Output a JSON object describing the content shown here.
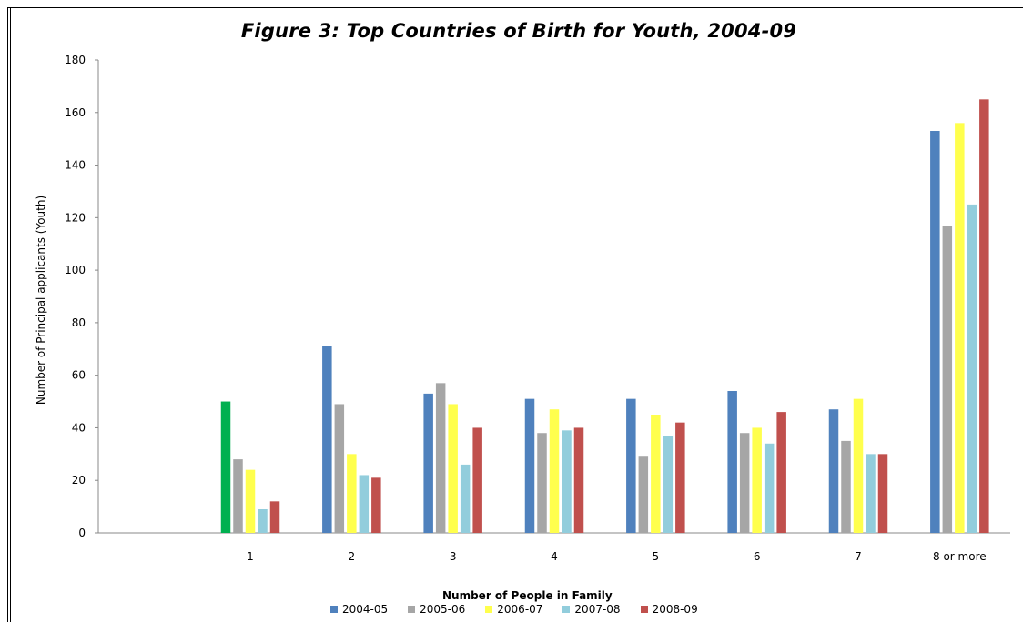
{
  "chart_data": {
    "type": "bar",
    "title": "Figure 3:  Top Countries of Birth for Youth, 2004-09",
    "xlabel": "Number of People in Family",
    "ylabel": "Number of Principal applicants (Youth)",
    "ylim": [
      0,
      180
    ],
    "yticks": [
      "0",
      "20",
      "40",
      "60",
      "80",
      "100",
      "120",
      "140",
      "160",
      "180"
    ],
    "grid": false,
    "legend_position": "bottom",
    "categories": [
      "",
      "1",
      "2",
      "3",
      "4",
      "5",
      "6",
      "7",
      "8 or more"
    ],
    "series": [
      {
        "name": "2004-05",
        "color": "#4F81BD",
        "values": [
          null,
          50,
          71,
          53,
          51,
          51,
          54,
          47,
          153
        ]
      },
      {
        "name": "2005-06",
        "color": "#A6A6A6",
        "values": [
          null,
          28,
          49,
          57,
          38,
          29,
          38,
          35,
          117
        ]
      },
      {
        "name": "2006-07",
        "color": "#FFFF4D",
        "values": [
          null,
          24,
          30,
          49,
          47,
          45,
          40,
          51,
          156
        ]
      },
      {
        "name": "2007-08",
        "color": "#92CDDC",
        "values": [
          null,
          9,
          22,
          26,
          39,
          37,
          34,
          30,
          125
        ]
      },
      {
        "name": "2008-09",
        "color": "#C0504D",
        "values": [
          null,
          12,
          21,
          40,
          40,
          42,
          46,
          30,
          165
        ]
      }
    ],
    "highlight": {
      "series_index": 0,
      "category_index": 1,
      "color": "#00B050"
    }
  }
}
